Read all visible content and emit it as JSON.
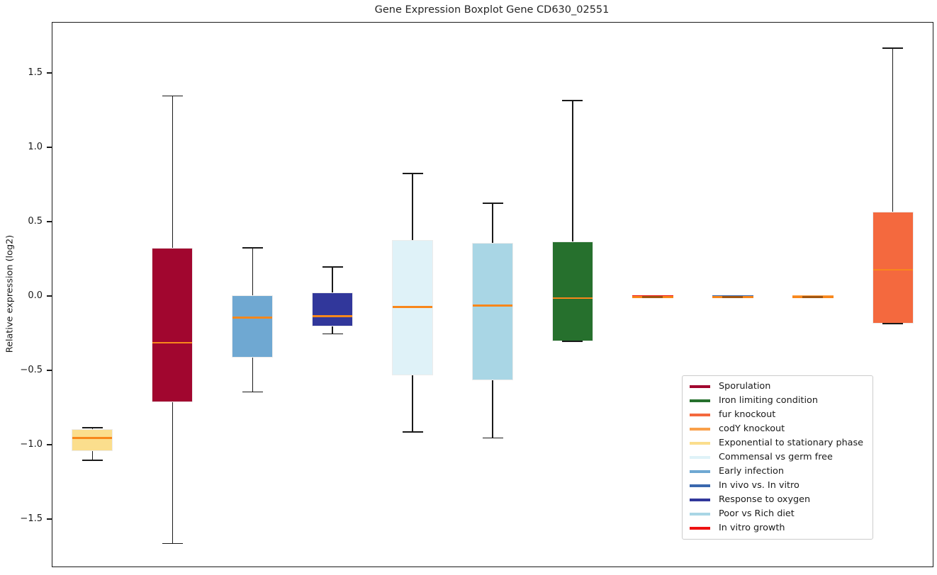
{
  "figure": {
    "title": "Gene Expression Boxplot Gene CD630_02551"
  },
  "chart_data": {
    "type": "boxplot",
    "title": "Gene Expression Boxplot Gene CD630_02551",
    "xlabel": "",
    "ylabel": "Relative expression (log2)",
    "ylim": [
      -1.81,
      1.84
    ],
    "grid": false,
    "legend_position": "lower right",
    "median_color": "#F8871B",
    "whisker_color": "#1a1a1a",
    "yticks": [
      {
        "label": "1.5",
        "value": 1.5
      },
      {
        "label": "1.0",
        "value": 1.0
      },
      {
        "label": "0.5",
        "value": 0.5
      },
      {
        "label": "0.0",
        "value": 0.0
      },
      {
        "label": "−0.5",
        "value": -0.5
      },
      {
        "label": "−1.0",
        "value": -1.0
      },
      {
        "label": "−1.5",
        "value": -1.5
      }
    ],
    "boxes": [
      {
        "condition": "Exponential to stationary phase",
        "color": "#FBDE8D",
        "whisker_low": -1.1,
        "q1": -1.04,
        "median": -0.95,
        "q3": -0.89,
        "whisker_high": -0.88
      },
      {
        "condition": "Sporulation",
        "color": "#A1062F",
        "whisker_low": -1.66,
        "q1": -0.71,
        "median": -0.31,
        "q3": 0.33,
        "whisker_high": 1.35
      },
      {
        "condition": "Early infection",
        "color": "#6FA8D2",
        "whisker_low": -0.64,
        "q1": -0.41,
        "median": -0.14,
        "q3": 0.01,
        "whisker_high": 0.33
      },
      {
        "condition": "Response to oxygen",
        "color": "#31379B",
        "whisker_low": -0.25,
        "q1": -0.2,
        "median": -0.13,
        "q3": 0.03,
        "whisker_high": 0.2
      },
      {
        "condition": "Commensal vs germ free",
        "color": "#DFF2F8",
        "whisker_low": -0.91,
        "q1": -0.53,
        "median": -0.07,
        "q3": 0.38,
        "whisker_high": 0.83
      },
      {
        "condition": "Poor vs Rich diet",
        "color": "#A9D6E5",
        "whisker_low": -0.95,
        "q1": -0.56,
        "median": -0.06,
        "q3": 0.36,
        "whisker_high": 0.63
      },
      {
        "condition": "Iron limiting condition",
        "color": "#26702D",
        "whisker_low": -0.3,
        "q1": -0.3,
        "median": -0.01,
        "q3": 0.37,
        "whisker_high": 1.32
      },
      {
        "condition": "In vitro growth",
        "color": "#EE1111",
        "whisker_low": -0.01,
        "q1": -0.01,
        "median": 0.0,
        "q3": 0.0,
        "whisker_high": 0.0
      },
      {
        "condition": "In vivo vs. In vitro",
        "color": "#3A68AE",
        "whisker_low": -0.01,
        "q1": -0.01,
        "median": 0.0,
        "q3": 0.0,
        "whisker_high": 0.0
      },
      {
        "condition": "codY knockout",
        "color": "#F9A04A",
        "whisker_low": -0.01,
        "q1": -0.01,
        "median": 0.0,
        "q3": 0.0,
        "whisker_high": 0.0
      },
      {
        "condition": "fur knockout",
        "color": "#F4693E",
        "whisker_low": -0.18,
        "q1": -0.18,
        "median": 0.18,
        "q3": 0.57,
        "whisker_high": 1.67
      }
    ],
    "legend": [
      {
        "label": "Sporulation",
        "color": "#A1062F"
      },
      {
        "label": "Iron limiting condition",
        "color": "#26702D"
      },
      {
        "label": "fur knockout",
        "color": "#F4693E"
      },
      {
        "label": "codY knockout",
        "color": "#F9A04A"
      },
      {
        "label": "Exponential to stationary phase",
        "color": "#FBDE8D"
      },
      {
        "label": "Commensal vs germ free",
        "color": "#DFF2F8"
      },
      {
        "label": "Early infection",
        "color": "#6FA8D2"
      },
      {
        "label": "In vivo vs. In vitro",
        "color": "#3A68AE"
      },
      {
        "label": "Response to oxygen",
        "color": "#31379B"
      },
      {
        "label": "Poor vs Rich diet",
        "color": "#A9D6E5"
      },
      {
        "label": "In vitro growth",
        "color": "#EE1111"
      }
    ]
  }
}
